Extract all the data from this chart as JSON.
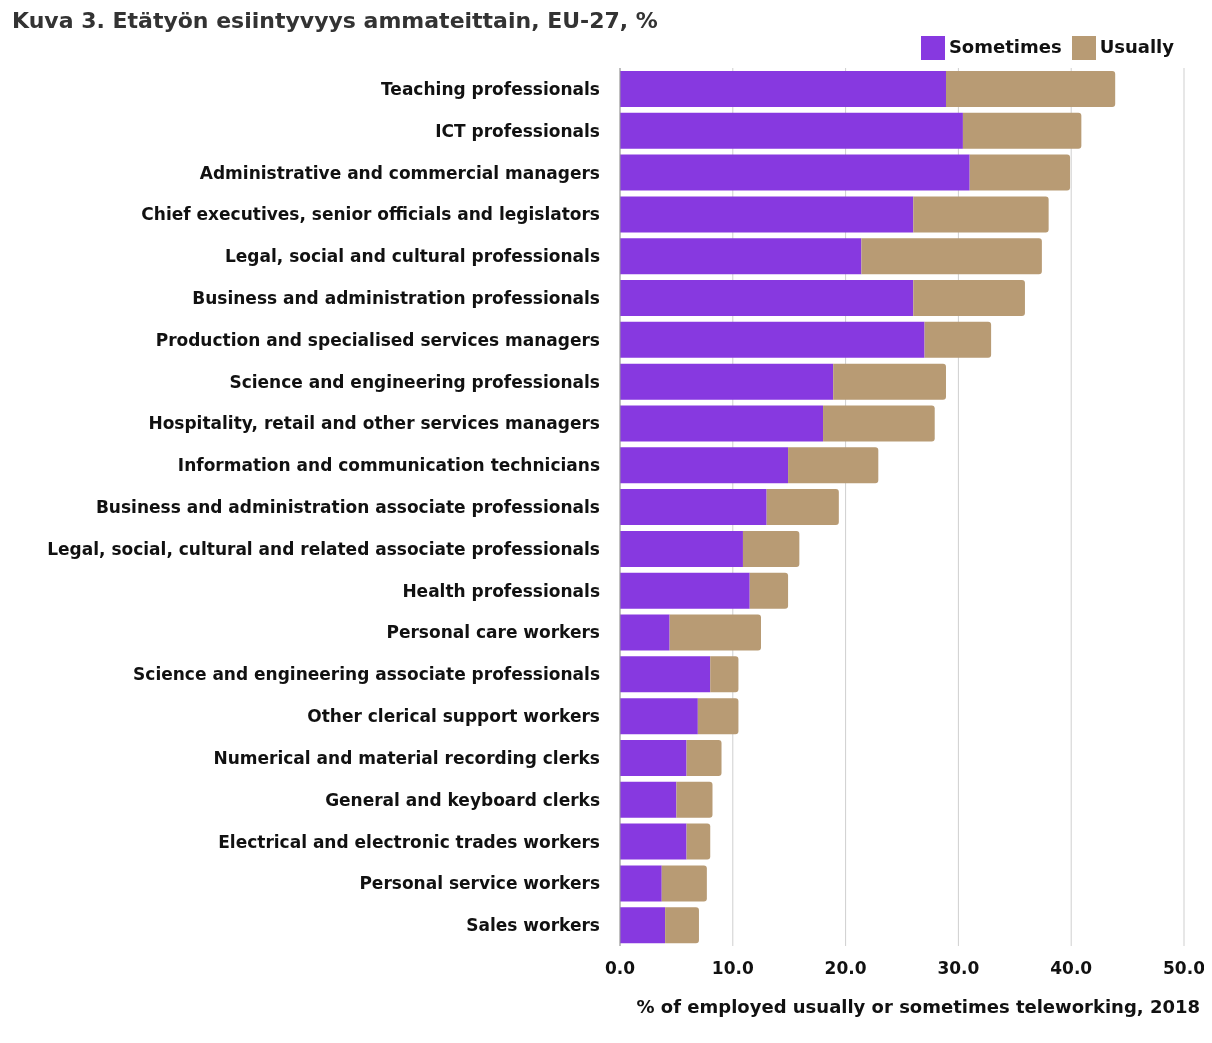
{
  "chart_data": {
    "type": "bar",
    "orientation": "horizontal",
    "stacked": true,
    "title": "Kuva 3. Etätyön esiintyvyys ammateittain, EU-27, %",
    "xlabel": "% of employed usually or sometimes teleworking, 2018",
    "categories": [
      "Teaching professionals",
      "ICT professionals",
      "Administrative and commercial managers",
      "Chief executives, senior officials and legislators",
      "Legal, social and cultural professionals",
      "Business and administration professionals",
      "Production and specialised services managers",
      "Science and engineering professionals",
      "Hospitality, retail and other services managers",
      "Information and communication technicians",
      "Business and administration associate professionals",
      "Legal, social, cultural and related associate professionals",
      "Health professionals",
      "Personal care workers",
      "Science and engineering associate professionals",
      "Other clerical support workers",
      "Numerical and material recording clerks",
      "General and keyboard clerks",
      "Electrical and electronic trades workers",
      "Personal service workers",
      "Sales workers"
    ],
    "series": [
      {
        "name": "Sometimes",
        "color": "#8739e0",
        "values": [
          28.9,
          30.4,
          31.0,
          26.0,
          21.4,
          26.0,
          27.0,
          18.9,
          18.0,
          14.9,
          13.0,
          10.9,
          11.5,
          4.4,
          8.0,
          6.9,
          5.9,
          5.0,
          5.9,
          3.7,
          4.0
        ]
      },
      {
        "name": "Usually",
        "color": "#b89b74",
        "values": [
          15.0,
          10.5,
          8.9,
          12.0,
          16.0,
          9.9,
          5.9,
          10.0,
          9.9,
          8.0,
          6.4,
          5.0,
          3.4,
          8.1,
          2.5,
          3.6,
          3.1,
          3.2,
          2.1,
          4.0,
          3.0
        ]
      }
    ],
    "xlim": [
      0,
      50
    ],
    "xticks": [
      {
        "value": 0,
        "label": "0.0"
      },
      {
        "value": 10,
        "label": "10.0"
      },
      {
        "value": 20,
        "label": "20.0"
      },
      {
        "value": 30,
        "label": "30.0"
      },
      {
        "value": 40,
        "label": "40.0"
      },
      {
        "value": 50,
        "label": "50.0"
      }
    ],
    "grid": "x",
    "legend": "top right"
  }
}
